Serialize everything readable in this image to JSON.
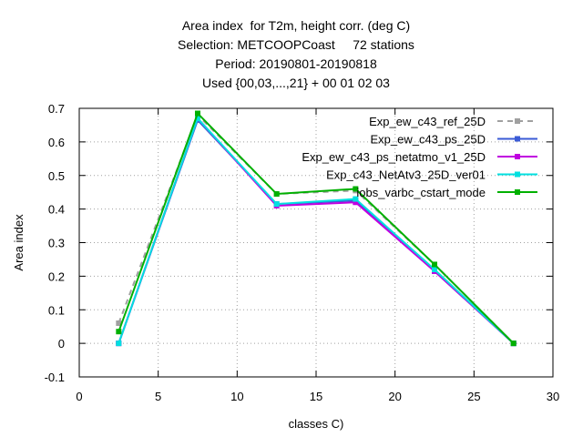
{
  "chart_data": {
    "type": "line",
    "title_lines": [
      "Area index  for T2m, height corr. (deg C)",
      "Selection: METCOOPCoast     72 stations",
      "Period: 20190801-20190818",
      "Used {00,03,...,21} + 00 01 02 03"
    ],
    "xlabel": "classes C)",
    "ylabel": "Area index",
    "xlim": [
      0,
      30
    ],
    "ylim": [
      -0.1,
      0.7
    ],
    "xticks": [
      "0",
      "5",
      "10",
      "15",
      "20",
      "25",
      "30"
    ],
    "yticks": [
      "-0.1",
      "0",
      "0.1",
      "0.2",
      "0.3",
      "0.4",
      "0.5",
      "0.6",
      "0.7"
    ],
    "grid": true,
    "legend_position": "top-right",
    "series": [
      {
        "name": "Exp_ew_c43_ref_25D",
        "color": "#a0a0a0",
        "dashed": true,
        "x": [
          2.5,
          7.5,
          12.5,
          17.5,
          22.5,
          27.5
        ],
        "y": [
          0.06,
          0.68,
          0.445,
          0.455,
          0.235,
          0.0
        ]
      },
      {
        "name": "Exp_ew_c43_ps_25D",
        "color": "#3b5bd6",
        "dashed": false,
        "x": [
          2.5,
          7.5,
          12.5,
          17.5,
          22.5,
          27.5
        ],
        "y": [
          0.0,
          0.665,
          0.415,
          0.425,
          0.215,
          0.0
        ]
      },
      {
        "name": "Exp_ew_c43_ps_netatmo_v1_25D",
        "color": "#c000e0",
        "dashed": false,
        "x": [
          2.5,
          7.5,
          12.5,
          17.5,
          22.5,
          27.5
        ],
        "y": [
          0.0,
          0.67,
          0.41,
          0.42,
          0.215,
          0.0
        ]
      },
      {
        "name": "Exp_c43_NetAtv3_25D_ver01",
        "color": "#00e0e0",
        "dashed": false,
        "x": [
          2.5,
          7.5,
          12.5,
          17.5,
          22.5,
          27.5
        ],
        "y": [
          0.0,
          0.67,
          0.415,
          0.43,
          0.22,
          0.0
        ]
      },
      {
        "name": "iobs_varbc_cstart_mode",
        "color": "#00b000",
        "dashed": false,
        "x": [
          2.5,
          7.5,
          12.5,
          17.5,
          22.5,
          27.5
        ],
        "y": [
          0.035,
          0.685,
          0.445,
          0.46,
          0.235,
          0.0
        ]
      }
    ]
  }
}
